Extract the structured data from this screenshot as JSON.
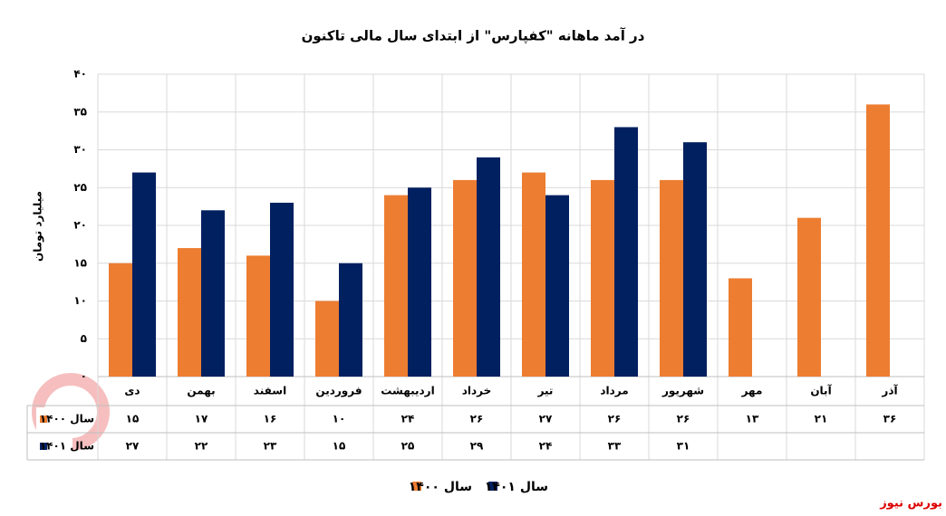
{
  "chart_data": {
    "type": "bar",
    "title": "در آمد ماهانه \"کفپارس\" از ابتدای سال مالی تاکنون",
    "y_label": "میلیارد تومان",
    "source": "بورس نیوز",
    "categories": [
      "دی",
      "بهمن",
      "اسفند",
      "فروردین",
      "اردیبهشت",
      "خرداد",
      "تیر",
      "مرداد",
      "شهریور",
      "مهر",
      "آبان",
      "آذر"
    ],
    "series": [
      {
        "name": "سال ۱۴۰۰",
        "color": "#ED7D31",
        "values": [
          15,
          17,
          16,
          10,
          24,
          26,
          27,
          26,
          26,
          13,
          21,
          36
        ],
        "value_labels": [
          "۱۵",
          "۱۷",
          "۱۶",
          "۱۰",
          "۲۴",
          "۲۶",
          "۲۷",
          "۲۶",
          "۲۶",
          "۱۳",
          "۲۱",
          "۳۶"
        ]
      },
      {
        "name": "سال ۱۴۰۱",
        "color": "#002060",
        "values": [
          27,
          22,
          23,
          15,
          25,
          29,
          24,
          33,
          31,
          null,
          null,
          null
        ],
        "value_labels": [
          "۲۷",
          "۲۲",
          "۲۳",
          "۱۵",
          "۲۵",
          "۲۹",
          "۲۴",
          "۳۳",
          "۳۱",
          null,
          null,
          null
        ]
      }
    ],
    "ylim": [
      0,
      40
    ],
    "yticks": [
      {
        "value": 0,
        "label": "۰"
      },
      {
        "value": 5,
        "label": "۵"
      },
      {
        "value": 10,
        "label": "۱۰"
      },
      {
        "value": 15,
        "label": "۱۵"
      },
      {
        "value": 20,
        "label": "۲۰"
      },
      {
        "value": 25,
        "label": "۲۵"
      },
      {
        "value": 30,
        "label": "۳۰"
      },
      {
        "value": 35,
        "label": "۳۵"
      },
      {
        "value": 40,
        "label": "۴۰"
      }
    ],
    "grid": true
  }
}
